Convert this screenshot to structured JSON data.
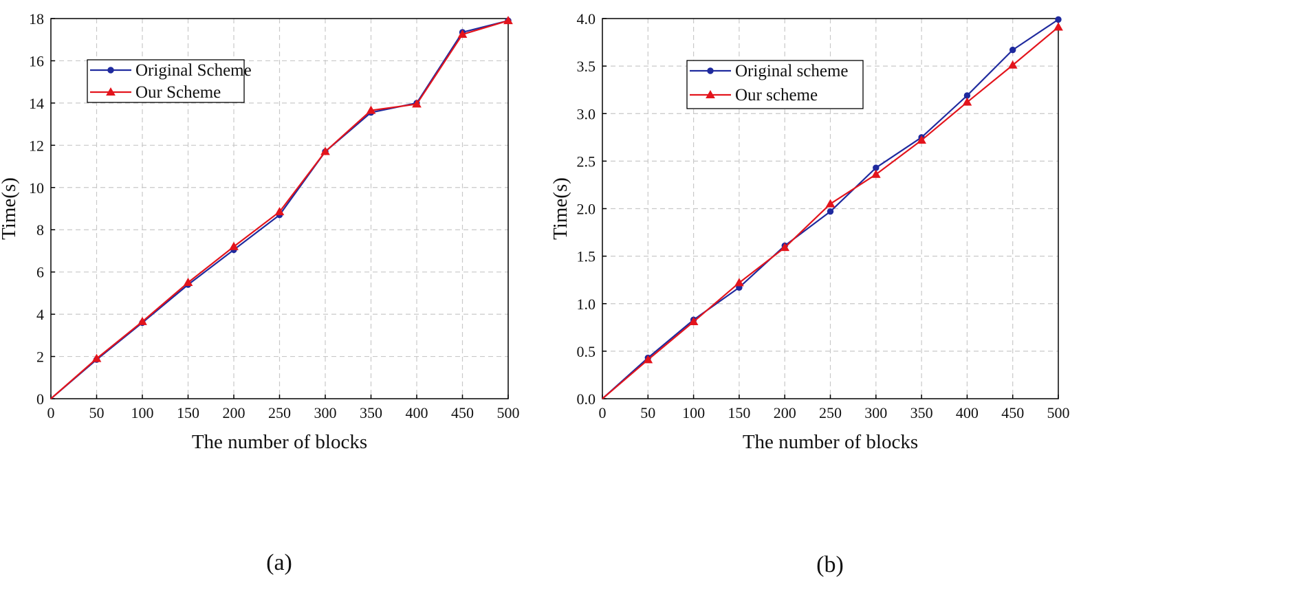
{
  "chart_data": [
    {
      "type": "line",
      "panel_label": "(a)",
      "xlabel": "The number of blocks",
      "ylabel": "Time(s)",
      "xlim": [
        0,
        500
      ],
      "ylim": [
        0,
        18
      ],
      "x_ticks": [
        "0",
        "50",
        "100",
        "150",
        "200",
        "250",
        "300",
        "350",
        "400",
        "450",
        "500"
      ],
      "y_ticks": [
        "0",
        "2",
        "4",
        "6",
        "8",
        "10",
        "12",
        "14",
        "16",
        "18"
      ],
      "grid": true,
      "legend_position": "top-left",
      "x": [
        0,
        50,
        100,
        150,
        200,
        250,
        300,
        350,
        400,
        450,
        500
      ],
      "series": [
        {
          "name": "Original Scheme",
          "color": "#1f2a9e",
          "marker": "circle",
          "values": [
            0,
            1.85,
            3.6,
            5.4,
            7.05,
            8.7,
            11.7,
            13.55,
            14.0,
            17.35,
            17.9
          ]
        },
        {
          "name": "Our Scheme",
          "color": "#e3141c",
          "marker": "triangle",
          "values": [
            0,
            1.9,
            3.65,
            5.5,
            7.2,
            8.85,
            11.7,
            13.65,
            13.95,
            17.25,
            17.9
          ]
        }
      ]
    },
    {
      "type": "line",
      "panel_label": "(b)",
      "xlabel": "The number of blocks",
      "ylabel": "Time(s)",
      "xlim": [
        0,
        500
      ],
      "ylim": [
        0,
        4.0
      ],
      "x_ticks": [
        "0",
        "50",
        "100",
        "150",
        "200",
        "250",
        "300",
        "350",
        "400",
        "450",
        "500"
      ],
      "y_ticks": [
        "0.0",
        "0.5",
        "1.0",
        "1.5",
        "2.0",
        "2.5",
        "3.0",
        "3.5",
        "4.0"
      ],
      "grid": true,
      "legend_position": "top-left",
      "x": [
        0,
        50,
        100,
        150,
        200,
        250,
        300,
        350,
        400,
        450,
        500
      ],
      "series": [
        {
          "name": "Original scheme",
          "color": "#1f2a9e",
          "marker": "circle",
          "values": [
            0,
            0.43,
            0.83,
            1.17,
            1.61,
            1.97,
            2.43,
            2.75,
            3.19,
            3.67,
            3.99
          ]
        },
        {
          "name": "Our scheme",
          "color": "#e3141c",
          "marker": "triangle",
          "values": [
            0,
            0.41,
            0.81,
            1.22,
            1.59,
            2.05,
            2.36,
            2.72,
            3.12,
            3.51,
            3.91
          ]
        }
      ]
    }
  ]
}
